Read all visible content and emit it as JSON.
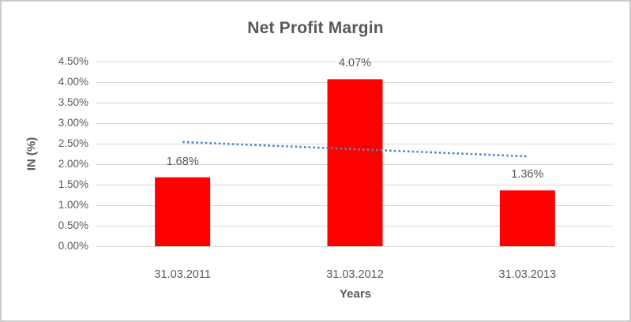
{
  "window": {
    "background": "#FFFFFF",
    "border_color": "#CBCBCB"
  },
  "chart_data": {
    "type": "bar",
    "title": "Net Profit Margin",
    "xlabel": "Years",
    "ylabel": "IN (%)",
    "categories": [
      "31.03.2011",
      "31.03.2012",
      "31.03.2013"
    ],
    "values": [
      1.68,
      4.07,
      1.36
    ],
    "data_labels": [
      "1.68%",
      "4.07%",
      "1.36%"
    ],
    "ylim": [
      0,
      4.5
    ],
    "ytick_step": 0.5,
    "ytick_labels_top_to_bottom": [
      "4.50%",
      "4.00%",
      "3.50%",
      "3.00%",
      "2.50%",
      "2.00%",
      "1.50%",
      "1.00%",
      "0.50%",
      "0.00%"
    ],
    "grid": true,
    "legend": "none",
    "colors": {
      "bar": "#FF0000",
      "trendline": "#4E87C6",
      "text": "#595959",
      "gridline": "#D9D9D9"
    },
    "trendline": {
      "type": "linear",
      "style": "dotted",
      "start": {
        "category_index": 0,
        "value": 2.54
      },
      "end": {
        "category_index": 2,
        "value": 2.19
      }
    }
  }
}
